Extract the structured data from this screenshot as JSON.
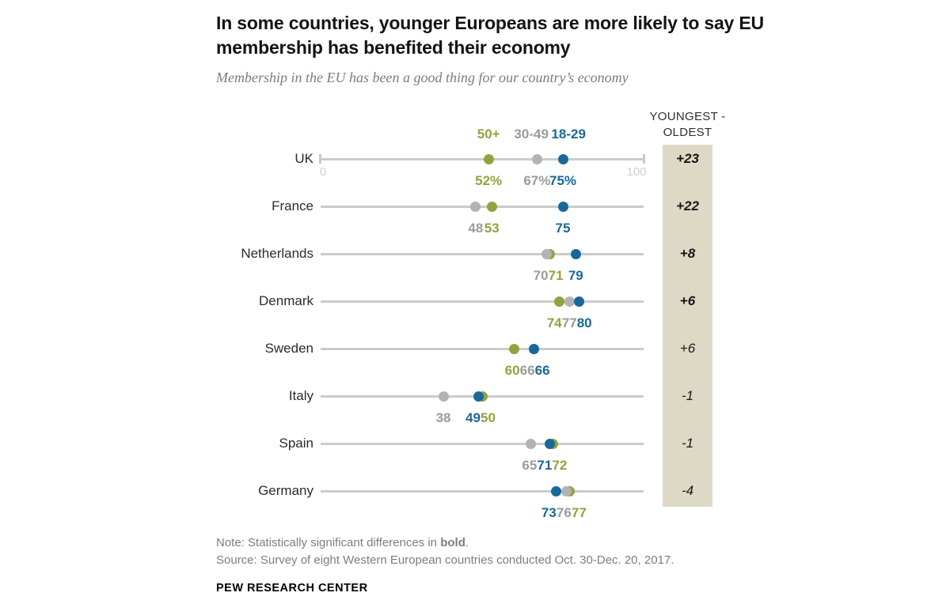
{
  "chart_data": {
    "type": "scatter",
    "chart_kind": "dot-plot",
    "title": "In some countries, younger Europeans are more likely to say EU membership has benefited their economy",
    "subtitle": "Membership in the EU has been a good thing for our country’s economy",
    "legend_position": "top, centered over first-row dots",
    "grid": false,
    "axis": {
      "min": 0,
      "max": 100,
      "min_label": "0",
      "max_label": "100",
      "end_labels_shown_only_on_first_row": true
    },
    "groups": [
      {
        "id": "50plus",
        "label": "50+",
        "dot_color": "#96a13c",
        "text_color": "#96a13c"
      },
      {
        "id": "30to49",
        "label": "30-49",
        "dot_color": "#b3b3b3",
        "text_color": "#9b9b9b"
      },
      {
        "id": "18to29",
        "label": "18-29",
        "dot_color": "#17699b",
        "text_color": "#17699b"
      }
    ],
    "countries": [
      {
        "name": "UK",
        "values": [
          52,
          67,
          75
        ],
        "value_suffix": "%",
        "diff": "+23",
        "diff_bold": true
      },
      {
        "name": "France",
        "values": [
          53,
          48,
          75
        ],
        "value_suffix": "",
        "diff": "+22",
        "diff_bold": true
      },
      {
        "name": "Netherlands",
        "values": [
          71,
          70,
          79
        ],
        "value_suffix": "",
        "diff": "+8",
        "diff_bold": true
      },
      {
        "name": "Denmark",
        "values": [
          74,
          77,
          80
        ],
        "value_suffix": "",
        "diff": "+6",
        "diff_bold": true
      },
      {
        "name": "Sweden",
        "values": [
          60,
          66,
          66
        ],
        "value_suffix": "",
        "diff": "+6",
        "diff_bold": false
      },
      {
        "name": "Italy",
        "values": [
          50,
          38,
          49
        ],
        "value_suffix": "",
        "diff": "-1",
        "diff_bold": false
      },
      {
        "name": "Spain",
        "values": [
          72,
          65,
          71
        ],
        "value_suffix": "",
        "diff": "-1",
        "diff_bold": false
      },
      {
        "name": "Germany",
        "values": [
          77,
          76,
          73
        ],
        "value_suffix": "",
        "diff": "-4",
        "diff_bold": false
      }
    ],
    "diff_column": {
      "header_line1": "YOUNGEST -",
      "header_line2": "OLDEST",
      "panel_color": "#ded9c5"
    },
    "line_color": "#cbcbcb"
  },
  "footer": {
    "note_prefix": "Note: Statistically significant differences in ",
    "note_bold": "bold",
    "note_suffix": ".",
    "source": "Source: Survey of eight Western European countries conducted Oct. 30-Dec. 20, 2017.",
    "attribution": "PEW RESEARCH CENTER"
  }
}
